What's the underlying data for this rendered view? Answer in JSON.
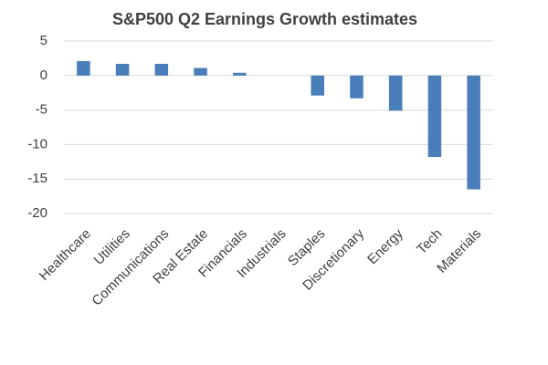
{
  "chart_data": {
    "type": "bar",
    "title": "S&P500 Q2 Earnings Growth estimates",
    "categories": [
      "Healthcare",
      "Utilities",
      "Communications",
      "Real Estate",
      "Financials",
      "Industrials",
      "Staples",
      "Discretionary",
      "Energy",
      "Tech",
      "Materials"
    ],
    "values": [
      2.1,
      1.7,
      1.7,
      1.1,
      0.4,
      0,
      -2.9,
      -3.3,
      -5.1,
      -11.8,
      -16.5
    ],
    "color": "#4a7ebb",
    "ylim": [
      -20,
      5
    ],
    "yticks": [
      5,
      0,
      -5,
      -10,
      -15,
      -20
    ],
    "grid": true
  }
}
